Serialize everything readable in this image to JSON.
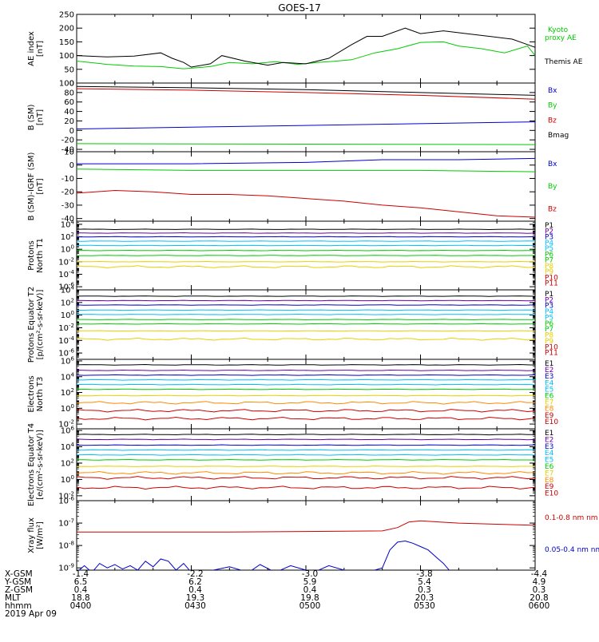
{
  "title": "GOES-17",
  "colors": {
    "black": "#000000",
    "green": "#00cc00",
    "blue": "#0000cc",
    "red": "#cc0000",
    "purple": "#6a00a8",
    "cyan": "#00bfff",
    "yellow": "#e8d000",
    "orange": "#ff8a00"
  },
  "ephemeris": {
    "labels": [
      "X-GSM",
      "Y-GSM",
      "Z-GSM",
      "MLT",
      "hhmm",
      "2019 Apr 09"
    ],
    "columns": [
      [
        "-1.4",
        "6.5",
        "0.4",
        "18.8",
        "0400"
      ],
      [
        "-2.2",
        "6.2",
        "0.4",
        "19.3",
        "0430"
      ],
      [
        "-3.0",
        "5.9",
        "0.4",
        "19.8",
        "0500"
      ],
      [
        "-3.8",
        "5.4",
        "0.3",
        "20.3",
        "0530"
      ],
      [
        "-4.4",
        "4.9",
        "0.3",
        "20.8",
        "0600"
      ]
    ]
  },
  "chart_data": [
    {
      "type": "line",
      "ylabel": "AE index [nT]",
      "ylim": [
        0,
        250
      ],
      "yticks": [
        "250",
        "200",
        "150",
        "100",
        "50",
        "0"
      ],
      "series": [
        {
          "name": "Kyoto proxy AE",
          "color": "green",
          "x": [
            0,
            8,
            15,
            22,
            28,
            35,
            40,
            46,
            52,
            58,
            63,
            68,
            72,
            78,
            84,
            90,
            96,
            100,
            106,
            112,
            118,
            120
          ],
          "values": [
            80,
            68,
            62,
            60,
            52,
            60,
            75,
            70,
            78,
            68,
            75,
            80,
            85,
            110,
            125,
            148,
            150,
            135,
            125,
            110,
            135,
            100
          ]
        },
        {
          "name": "Themis AE",
          "color": "black",
          "x": [
            0,
            8,
            15,
            22,
            25,
            28,
            30,
            35,
            38,
            44,
            50,
            54,
            60,
            66,
            72,
            76,
            80,
            86,
            90,
            96,
            102,
            108,
            114,
            118,
            120
          ],
          "values": [
            100,
            95,
            98,
            110,
            90,
            75,
            58,
            70,
            100,
            80,
            65,
            75,
            70,
            90,
            140,
            170,
            170,
            200,
            180,
            190,
            180,
            170,
            160,
            140,
            130
          ]
        }
      ]
    },
    {
      "type": "line",
      "ylabel": "B (SM) [nT]",
      "ylim": [
        -45,
        100
      ],
      "yticks": [
        "100",
        "80",
        "60",
        "40",
        "20",
        "0",
        "-20",
        "-40"
      ],
      "series": [
        {
          "name": "Bx",
          "color": "blue",
          "x": [
            0,
            120
          ],
          "values": [
            3,
            18
          ]
        },
        {
          "name": "By",
          "color": "green",
          "x": [
            0,
            120
          ],
          "values": [
            -28,
            -30
          ]
        },
        {
          "name": "Bz",
          "color": "red",
          "x": [
            0,
            30,
            60,
            90,
            120
          ],
          "values": [
            88,
            85,
            80,
            74,
            66
          ]
        },
        {
          "name": "Bmag",
          "color": "black",
          "x": [
            0,
            30,
            60,
            90,
            120
          ],
          "values": [
            93,
            90,
            86,
            80,
            74
          ]
        }
      ]
    },
    {
      "type": "line",
      "ylabel": "B (SM)-IGRF (SM) [nT]",
      "ylim": [
        -42,
        10
      ],
      "yticks": [
        "10",
        "0",
        "-10",
        "-20",
        "-30",
        "-40"
      ],
      "series": [
        {
          "name": "Bx",
          "color": "blue",
          "x": [
            0,
            30,
            60,
            80,
            100,
            120
          ],
          "values": [
            1,
            1,
            2,
            4,
            4,
            5
          ]
        },
        {
          "name": "By",
          "color": "green",
          "x": [
            0,
            30,
            60,
            90,
            120
          ],
          "values": [
            -3,
            -4,
            -4,
            -4,
            -5
          ]
        },
        {
          "name": "Bz",
          "color": "red",
          "x": [
            0,
            10,
            20,
            30,
            40,
            50,
            60,
            70,
            80,
            90,
            100,
            110,
            120
          ],
          "values": [
            -21,
            -19,
            -20,
            -22,
            -22,
            -23,
            -25,
            -27,
            -30,
            -32,
            -35,
            -38,
            -39
          ]
        }
      ]
    },
    {
      "type": "line",
      "ylabel": "Protons North T1",
      "log": true,
      "ylim": [
        -6.5,
        4.5
      ],
      "yticks": [
        "10^4",
        "10^2",
        "10^0",
        "10^-2",
        "10^-4",
        "10^-6"
      ],
      "series": [
        {
          "name": "P1",
          "color": "black",
          "level": 3.2
        },
        {
          "name": "P2",
          "color": "purple",
          "level": 2.6
        },
        {
          "name": "P3",
          "color": "blue",
          "level": 2.0
        },
        {
          "name": "P4",
          "color": "cyan",
          "level": 1.3
        },
        {
          "name": "P5",
          "color": "cyan",
          "level": 0.6
        },
        {
          "name": "P6",
          "color": "green",
          "level": -0.2
        },
        {
          "name": "P7",
          "color": "green",
          "level": -1.0
        },
        {
          "name": "P8",
          "color": "yellow",
          "level": -2.0
        },
        {
          "name": "P9",
          "color": "yellow",
          "level": -2.8
        },
        {
          "name": "P10",
          "color": "red",
          "level": null
        },
        {
          "name": "P11",
          "color": "red",
          "level": null
        }
      ]
    },
    {
      "type": "line",
      "ylabel": "Protons Equator T2 [p/(cm^2-s-sr-keV)]",
      "log": true,
      "ylim": [
        -7,
        4
      ],
      "yticks": [
        "10^4",
        "10^2",
        "10^0",
        "10^-2",
        "10^-4",
        "10^-6"
      ],
      "series": [
        {
          "name": "P1",
          "color": "black",
          "level": 3.0
        },
        {
          "name": "P2",
          "color": "purple",
          "level": 2.3
        },
        {
          "name": "P3",
          "color": "blue",
          "level": 1.6
        },
        {
          "name": "P4",
          "color": "cyan",
          "level": 0.8
        },
        {
          "name": "P5",
          "color": "cyan",
          "level": 0.1
        },
        {
          "name": "P6",
          "color": "green",
          "level": -0.7
        },
        {
          "name": "P7",
          "color": "green",
          "level": -1.4
        },
        {
          "name": "P8",
          "color": "yellow",
          "level": -2.5
        },
        {
          "name": "P9",
          "color": "yellow",
          "level": -3.8
        },
        {
          "name": "P10",
          "color": "red",
          "level": null
        },
        {
          "name": "P11",
          "color": "red",
          "level": null
        }
      ]
    },
    {
      "type": "line",
      "ylabel": "Electrons North T3",
      "log": true,
      "ylim": [
        -2.6,
        6.2
      ],
      "yticks": [
        "10^6",
        "10^4",
        "10^2",
        "10^0",
        "10^-2"
      ],
      "series": [
        {
          "name": "E1",
          "color": "black",
          "level": 5.5
        },
        {
          "name": "E2",
          "color": "purple",
          "level": 4.8
        },
        {
          "name": "E3",
          "color": "blue",
          "level": 4.2
        },
        {
          "name": "E4",
          "color": "cyan",
          "level": 3.6
        },
        {
          "name": "E5",
          "color": "cyan",
          "level": 3.0
        },
        {
          "name": "E6",
          "color": "green",
          "level": 2.4
        },
        {
          "name": "E7",
          "color": "yellow",
          "level": 1.6
        },
        {
          "name": "E8",
          "color": "orange",
          "level": 0.7
        },
        {
          "name": "E9",
          "color": "red",
          "level": -0.3
        },
        {
          "name": "E10",
          "color": "red",
          "level": -1.3
        }
      ]
    },
    {
      "type": "line",
      "ylabel": "Electrons Equator T4 [e/(cm^2-s-sr-keV)]",
      "log": true,
      "ylim": [
        -2.6,
        6.2
      ],
      "yticks": [
        "10^6",
        "10^4",
        "10^2",
        "10^0",
        "10^-2"
      ],
      "series": [
        {
          "name": "E1",
          "color": "black",
          "level": 5.5
        },
        {
          "name": "E2",
          "color": "purple",
          "level": 4.9
        },
        {
          "name": "E3",
          "color": "blue",
          "level": 4.2
        },
        {
          "name": "E4",
          "color": "cyan",
          "level": 3.6
        },
        {
          "name": "E5",
          "color": "cyan",
          "level": 3.0
        },
        {
          "name": "E6",
          "color": "green",
          "level": 2.4
        },
        {
          "name": "E7",
          "color": "yellow",
          "level": 1.6
        },
        {
          "name": "E8",
          "color": "orange",
          "level": 0.8
        },
        {
          "name": "E9",
          "color": "red",
          "level": 0.2
        },
        {
          "name": "E10",
          "color": "red",
          "level": -1.0
        }
      ]
    },
    {
      "type": "line",
      "ylabel": "Xray flux [W/m^2]",
      "log": true,
      "ylim": [
        -9.1,
        -6
      ],
      "yticks": [
        "10^-6",
        "10^-7",
        "10^-8",
        "10^-9"
      ],
      "series": [
        {
          "name": "0.1-0.8 nm",
          "color": "red",
          "x": [
            0,
            40,
            80,
            84,
            87,
            90,
            95,
            100,
            110,
            120
          ],
          "values": [
            -7.4,
            -7.4,
            -7.35,
            -7.2,
            -6.95,
            -6.9,
            -6.95,
            -7.0,
            -7.05,
            -7.1
          ]
        },
        {
          "name": "0.05-0.4 nm",
          "color": "blue",
          "x": [
            0,
            2,
            4,
            6,
            8,
            10,
            12,
            14,
            16,
            18,
            20,
            22,
            24,
            26,
            28,
            30,
            33,
            40,
            45,
            48,
            52,
            56,
            62,
            66,
            72,
            76,
            80,
            82,
            84,
            86,
            88,
            90,
            92,
            94,
            96,
            98
          ],
          "values": [
            -9.2,
            -8.9,
            -9.2,
            -8.8,
            -9.0,
            -8.85,
            -9.05,
            -8.9,
            -9.1,
            -8.7,
            -8.95,
            -8.6,
            -8.7,
            -9.1,
            -8.8,
            -9.2,
            -9.2,
            -8.95,
            -9.2,
            -8.85,
            -9.2,
            -8.9,
            -9.2,
            -8.9,
            -9.2,
            -9.2,
            -9.0,
            -8.2,
            -7.85,
            -7.8,
            -7.9,
            -8.05,
            -8.2,
            -8.5,
            -8.8,
            -9.2
          ]
        }
      ]
    }
  ]
}
